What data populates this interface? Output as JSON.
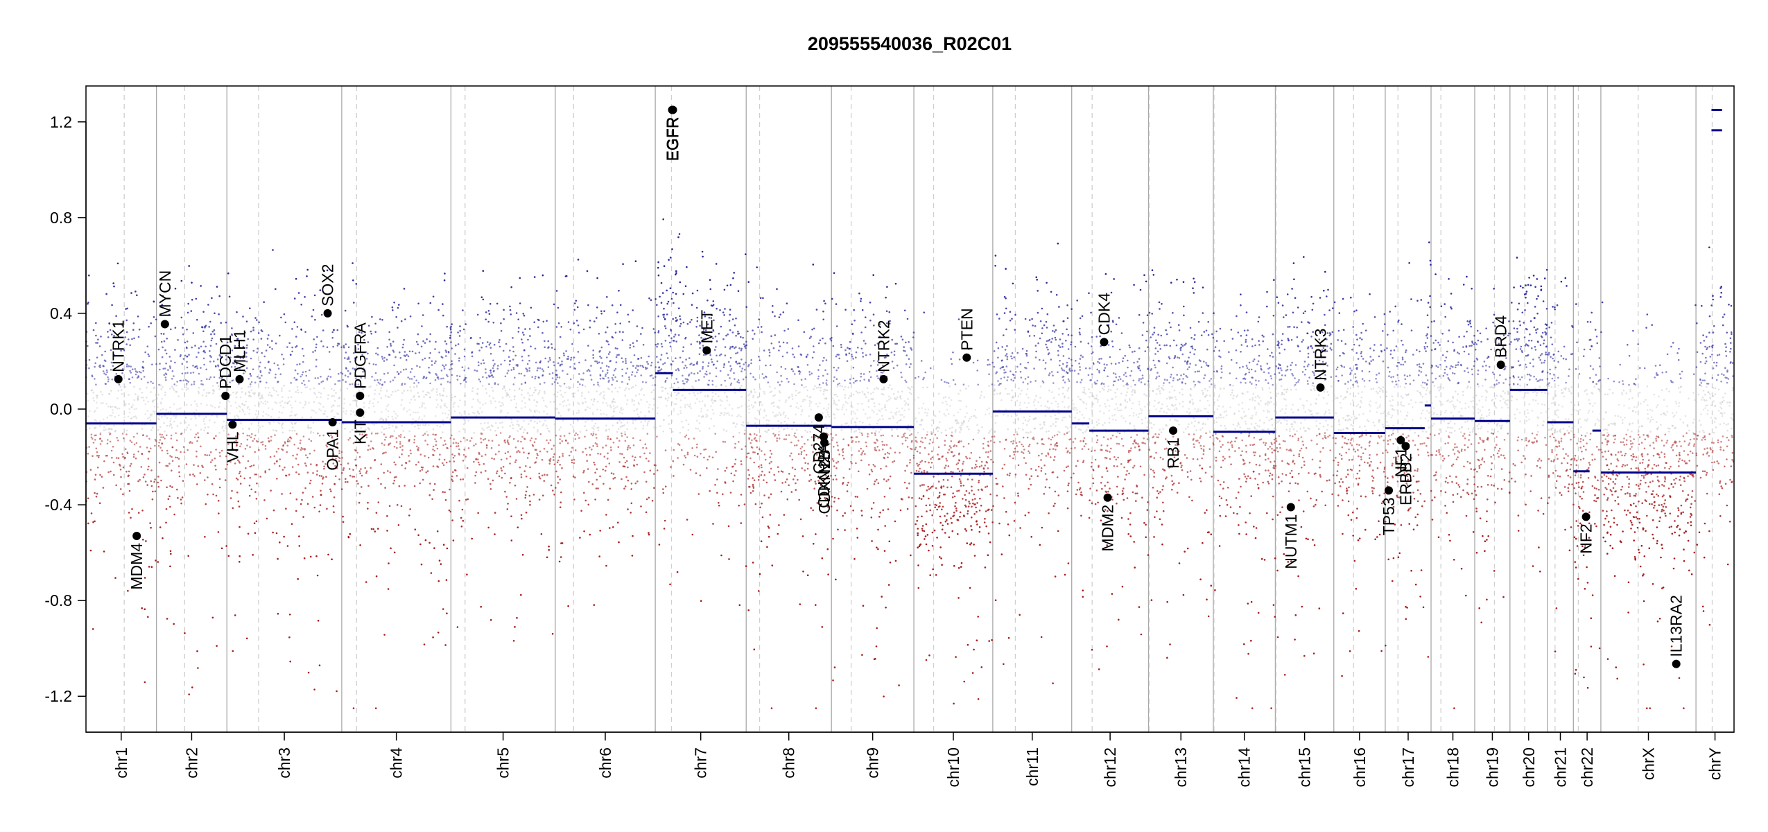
{
  "chart_data": {
    "type": "scatter",
    "title": "209555540036_R02C01",
    "xlabel": "",
    "ylabel": "",
    "ylim": [
      -1.35,
      1.35
    ],
    "yticks": [
      -1.2,
      -0.8,
      -0.4,
      0.0,
      0.4,
      0.8,
      1.2
    ],
    "ytick_labels": [
      "-1.2",
      "-0.8",
      "-0.4",
      "0.0",
      "0.4",
      "0.8",
      "1.2"
    ],
    "grid": "chromosome boundaries (solid) and centromeres (dashed)",
    "colors": {
      "gain": "#27279c",
      "neutral": "#bdbdbd",
      "loss": "#a61c1c",
      "segment": "#00008b",
      "gene": "#000000"
    },
    "chromosomes": [
      {
        "name": "chr1",
        "start": 0.0,
        "end": 1.0,
        "centromere": 0.543,
        "segments": [
          {
            "from": 0.0,
            "to": 1.0,
            "value": -0.06
          }
        ]
      },
      {
        "name": "chr2",
        "start": 1.0,
        "end": 2.0,
        "centromere": 1.4,
        "segments": [
          {
            "from": 1.0,
            "to": 2.0,
            "value": -0.02
          }
        ]
      },
      {
        "name": "chr3",
        "start": 2.0,
        "end": 3.63,
        "centromere": 2.45,
        "segments": [
          {
            "from": 2.0,
            "to": 3.63,
            "value": -0.045
          }
        ]
      },
      {
        "name": "chr4",
        "start": 3.63,
        "end": 5.18,
        "centromere": 3.84,
        "segments": [
          {
            "from": 3.63,
            "to": 5.18,
            "value": -0.055
          }
        ]
      },
      {
        "name": "chr5",
        "start": 5.18,
        "end": 6.66,
        "centromere": 5.38,
        "segments": [
          {
            "from": 5.18,
            "to": 6.66,
            "value": -0.035
          }
        ]
      },
      {
        "name": "chr6",
        "start": 6.66,
        "end": 8.08,
        "centromere": 6.92,
        "segments": [
          {
            "from": 6.66,
            "to": 8.08,
            "value": -0.04
          }
        ]
      },
      {
        "name": "chr7",
        "start": 8.08,
        "end": 9.37,
        "centromere": 8.31,
        "segments": [
          {
            "from": 8.08,
            "to": 8.33,
            "value": 0.15
          },
          {
            "from": 8.33,
            "to": 9.37,
            "value": 0.08
          }
        ]
      },
      {
        "name": "chr8",
        "start": 9.37,
        "end": 10.58,
        "centromere": 9.56,
        "segments": [
          {
            "from": 9.37,
            "to": 10.58,
            "value": -0.07
          }
        ]
      },
      {
        "name": "chr9",
        "start": 10.58,
        "end": 11.75,
        "centromere": 10.86,
        "segments": [
          {
            "from": 10.58,
            "to": 11.75,
            "value": -0.075
          }
        ]
      },
      {
        "name": "chr10",
        "start": 11.75,
        "end": 12.87,
        "centromere": 12.03,
        "segments": [
          {
            "from": 11.75,
            "to": 12.87,
            "value": -0.27
          }
        ]
      },
      {
        "name": "chr11",
        "start": 12.87,
        "end": 13.99,
        "centromere": 13.19,
        "segments": [
          {
            "from": 12.87,
            "to": 13.99,
            "value": -0.01
          }
        ]
      },
      {
        "name": "chr12",
        "start": 13.99,
        "end": 15.08,
        "centromere": 14.28,
        "segments": [
          {
            "from": 13.99,
            "to": 14.24,
            "value": -0.06
          },
          {
            "from": 14.24,
            "to": 15.08,
            "value": -0.09
          }
        ]
      },
      {
        "name": "chr13",
        "start": 15.08,
        "end": 16.0,
        "centromere": 15.09,
        "segments": [
          {
            "from": 15.08,
            "to": 16.0,
            "value": -0.03
          }
        ]
      },
      {
        "name": "chr14",
        "start": 16.0,
        "end": 16.88,
        "centromere": 16.01,
        "segments": [
          {
            "from": 16.0,
            "to": 16.88,
            "value": -0.095
          }
        ]
      },
      {
        "name": "chr15",
        "start": 16.88,
        "end": 17.71,
        "centromere": 16.89,
        "segments": [
          {
            "from": 16.88,
            "to": 17.71,
            "value": -0.035
          }
        ]
      },
      {
        "name": "chr16",
        "start": 17.71,
        "end": 18.44,
        "centromere": 17.99,
        "segments": [
          {
            "from": 17.71,
            "to": 18.44,
            "value": -0.1
          }
        ]
      },
      {
        "name": "chr17",
        "start": 18.44,
        "end": 19.09,
        "centromere": 18.62,
        "segments": [
          {
            "from": 18.44,
            "to": 19.0,
            "value": -0.08
          },
          {
            "from": 19.0,
            "to": 19.09,
            "value": 0.015
          }
        ]
      },
      {
        "name": "chr18",
        "start": 19.09,
        "end": 19.71,
        "centromere": 19.23,
        "segments": [
          {
            "from": 19.09,
            "to": 19.71,
            "value": -0.04
          }
        ]
      },
      {
        "name": "chr19",
        "start": 19.71,
        "end": 20.21,
        "centromere": 19.99,
        "segments": [
          {
            "from": 19.71,
            "to": 20.21,
            "value": -0.05
          }
        ]
      },
      {
        "name": "chr20",
        "start": 20.21,
        "end": 20.74,
        "centromere": 20.42,
        "segments": [
          {
            "from": 20.21,
            "to": 20.74,
            "value": 0.08
          }
        ]
      },
      {
        "name": "chr21",
        "start": 20.74,
        "end": 21.11,
        "centromere": 20.85,
        "segments": [
          {
            "from": 20.74,
            "to": 21.11,
            "value": -0.055
          }
        ]
      },
      {
        "name": "chr22",
        "start": 21.11,
        "end": 21.5,
        "centromere": 21.18,
        "segments": [
          {
            "from": 21.11,
            "to": 21.34,
            "value": -0.26
          },
          {
            "from": 21.38,
            "to": 21.5,
            "value": -0.09
          }
        ]
      },
      {
        "name": "chrX",
        "start": 21.5,
        "end": 22.85,
        "centromere": 22.03,
        "segments": [
          {
            "from": 21.5,
            "to": 22.85,
            "value": -0.265
          }
        ]
      },
      {
        "name": "chrY",
        "start": 22.85,
        "end": 23.39,
        "centromere": 23.08,
        "segments": [
          {
            "from": 23.07,
            "to": 23.22,
            "value": 1.25
          },
          {
            "from": 23.07,
            "to": 23.22,
            "value": 1.165
          }
        ]
      }
    ],
    "genes": [
      {
        "name": "NTRK1",
        "x": 0.46,
        "value": 0.125,
        "label_side": "above"
      },
      {
        "name": "MDM4",
        "x": 0.72,
        "value": -0.53,
        "label_side": "below"
      },
      {
        "name": "MYCN",
        "x": 1.12,
        "value": 0.355,
        "label_side": "above"
      },
      {
        "name": "PDCD1",
        "x": 1.98,
        "value": 0.055,
        "label_side": "above"
      },
      {
        "name": "VHL",
        "x": 2.08,
        "value": -0.065,
        "label_side": "below"
      },
      {
        "name": "MLH1",
        "x": 2.18,
        "value": 0.125,
        "label_side": "above"
      },
      {
        "name": "SOX2",
        "x": 3.43,
        "value": 0.4,
        "label_side": "above"
      },
      {
        "name": "OPA1",
        "x": 3.5,
        "value": -0.055,
        "label_side": "below"
      },
      {
        "name": "PDGFRA",
        "x": 3.89,
        "value": 0.055,
        "label_side": "above"
      },
      {
        "name": "KIT",
        "x": 3.89,
        "value": -0.015,
        "label_side": "below"
      },
      {
        "name": "EGFR",
        "x": 8.32,
        "value": 1.25,
        "label_side": "below"
      },
      {
        "name": "EGFR_2",
        "x": 8.33,
        "value": 1.25,
        "label_side": "below"
      },
      {
        "name": "MET",
        "x": 8.81,
        "value": 0.245,
        "label_side": "above"
      },
      {
        "name": "CD274",
        "x": 10.4,
        "value": -0.035,
        "label_side": "below"
      },
      {
        "name": "CDKN2A",
        "x": 10.47,
        "value": -0.115,
        "label_side": "below"
      },
      {
        "name": "CDKN2B",
        "x": 10.48,
        "value": -0.14,
        "label_side": "below"
      },
      {
        "name": "NTRK2",
        "x": 11.32,
        "value": 0.125,
        "label_side": "above"
      },
      {
        "name": "PTEN",
        "x": 12.5,
        "value": 0.215,
        "label_side": "above"
      },
      {
        "name": "CDK4",
        "x": 14.45,
        "value": 0.28,
        "label_side": "above"
      },
      {
        "name": "MDM2",
        "x": 14.5,
        "value": -0.37,
        "label_side": "below"
      },
      {
        "name": "RB1",
        "x": 15.43,
        "value": -0.09,
        "label_side": "below"
      },
      {
        "name": "NUTM1",
        "x": 17.1,
        "value": -0.41,
        "label_side": "below"
      },
      {
        "name": "NTRK3",
        "x": 17.52,
        "value": 0.09,
        "label_side": "above"
      },
      {
        "name": "TP53",
        "x": 18.49,
        "value": -0.34,
        "label_side": "below"
      },
      {
        "name": "NF1",
        "x": 18.66,
        "value": -0.13,
        "label_side": "below"
      },
      {
        "name": "ERBB2",
        "x": 18.73,
        "value": -0.155,
        "label_side": "below"
      },
      {
        "name": "BRD4",
        "x": 20.08,
        "value": 0.185,
        "label_side": "above"
      },
      {
        "name": "NF2",
        "x": 21.29,
        "value": -0.45,
        "label_side": "below"
      },
      {
        "name": "IL13RA2",
        "x": 22.57,
        "value": -1.065,
        "label_side": "above"
      }
    ],
    "gene_labels": {
      "EGFR": "EGFR",
      "EGFR_2": "EGFR",
      "CD274": "CD274",
      "CDKN2A": "CDKN2A",
      "CDKN2B": "CDKN2B"
    },
    "notes": "Background probe scatter (~thousands of points) per chromosome, coloured blue above 0, grey near 0, red below 0."
  }
}
